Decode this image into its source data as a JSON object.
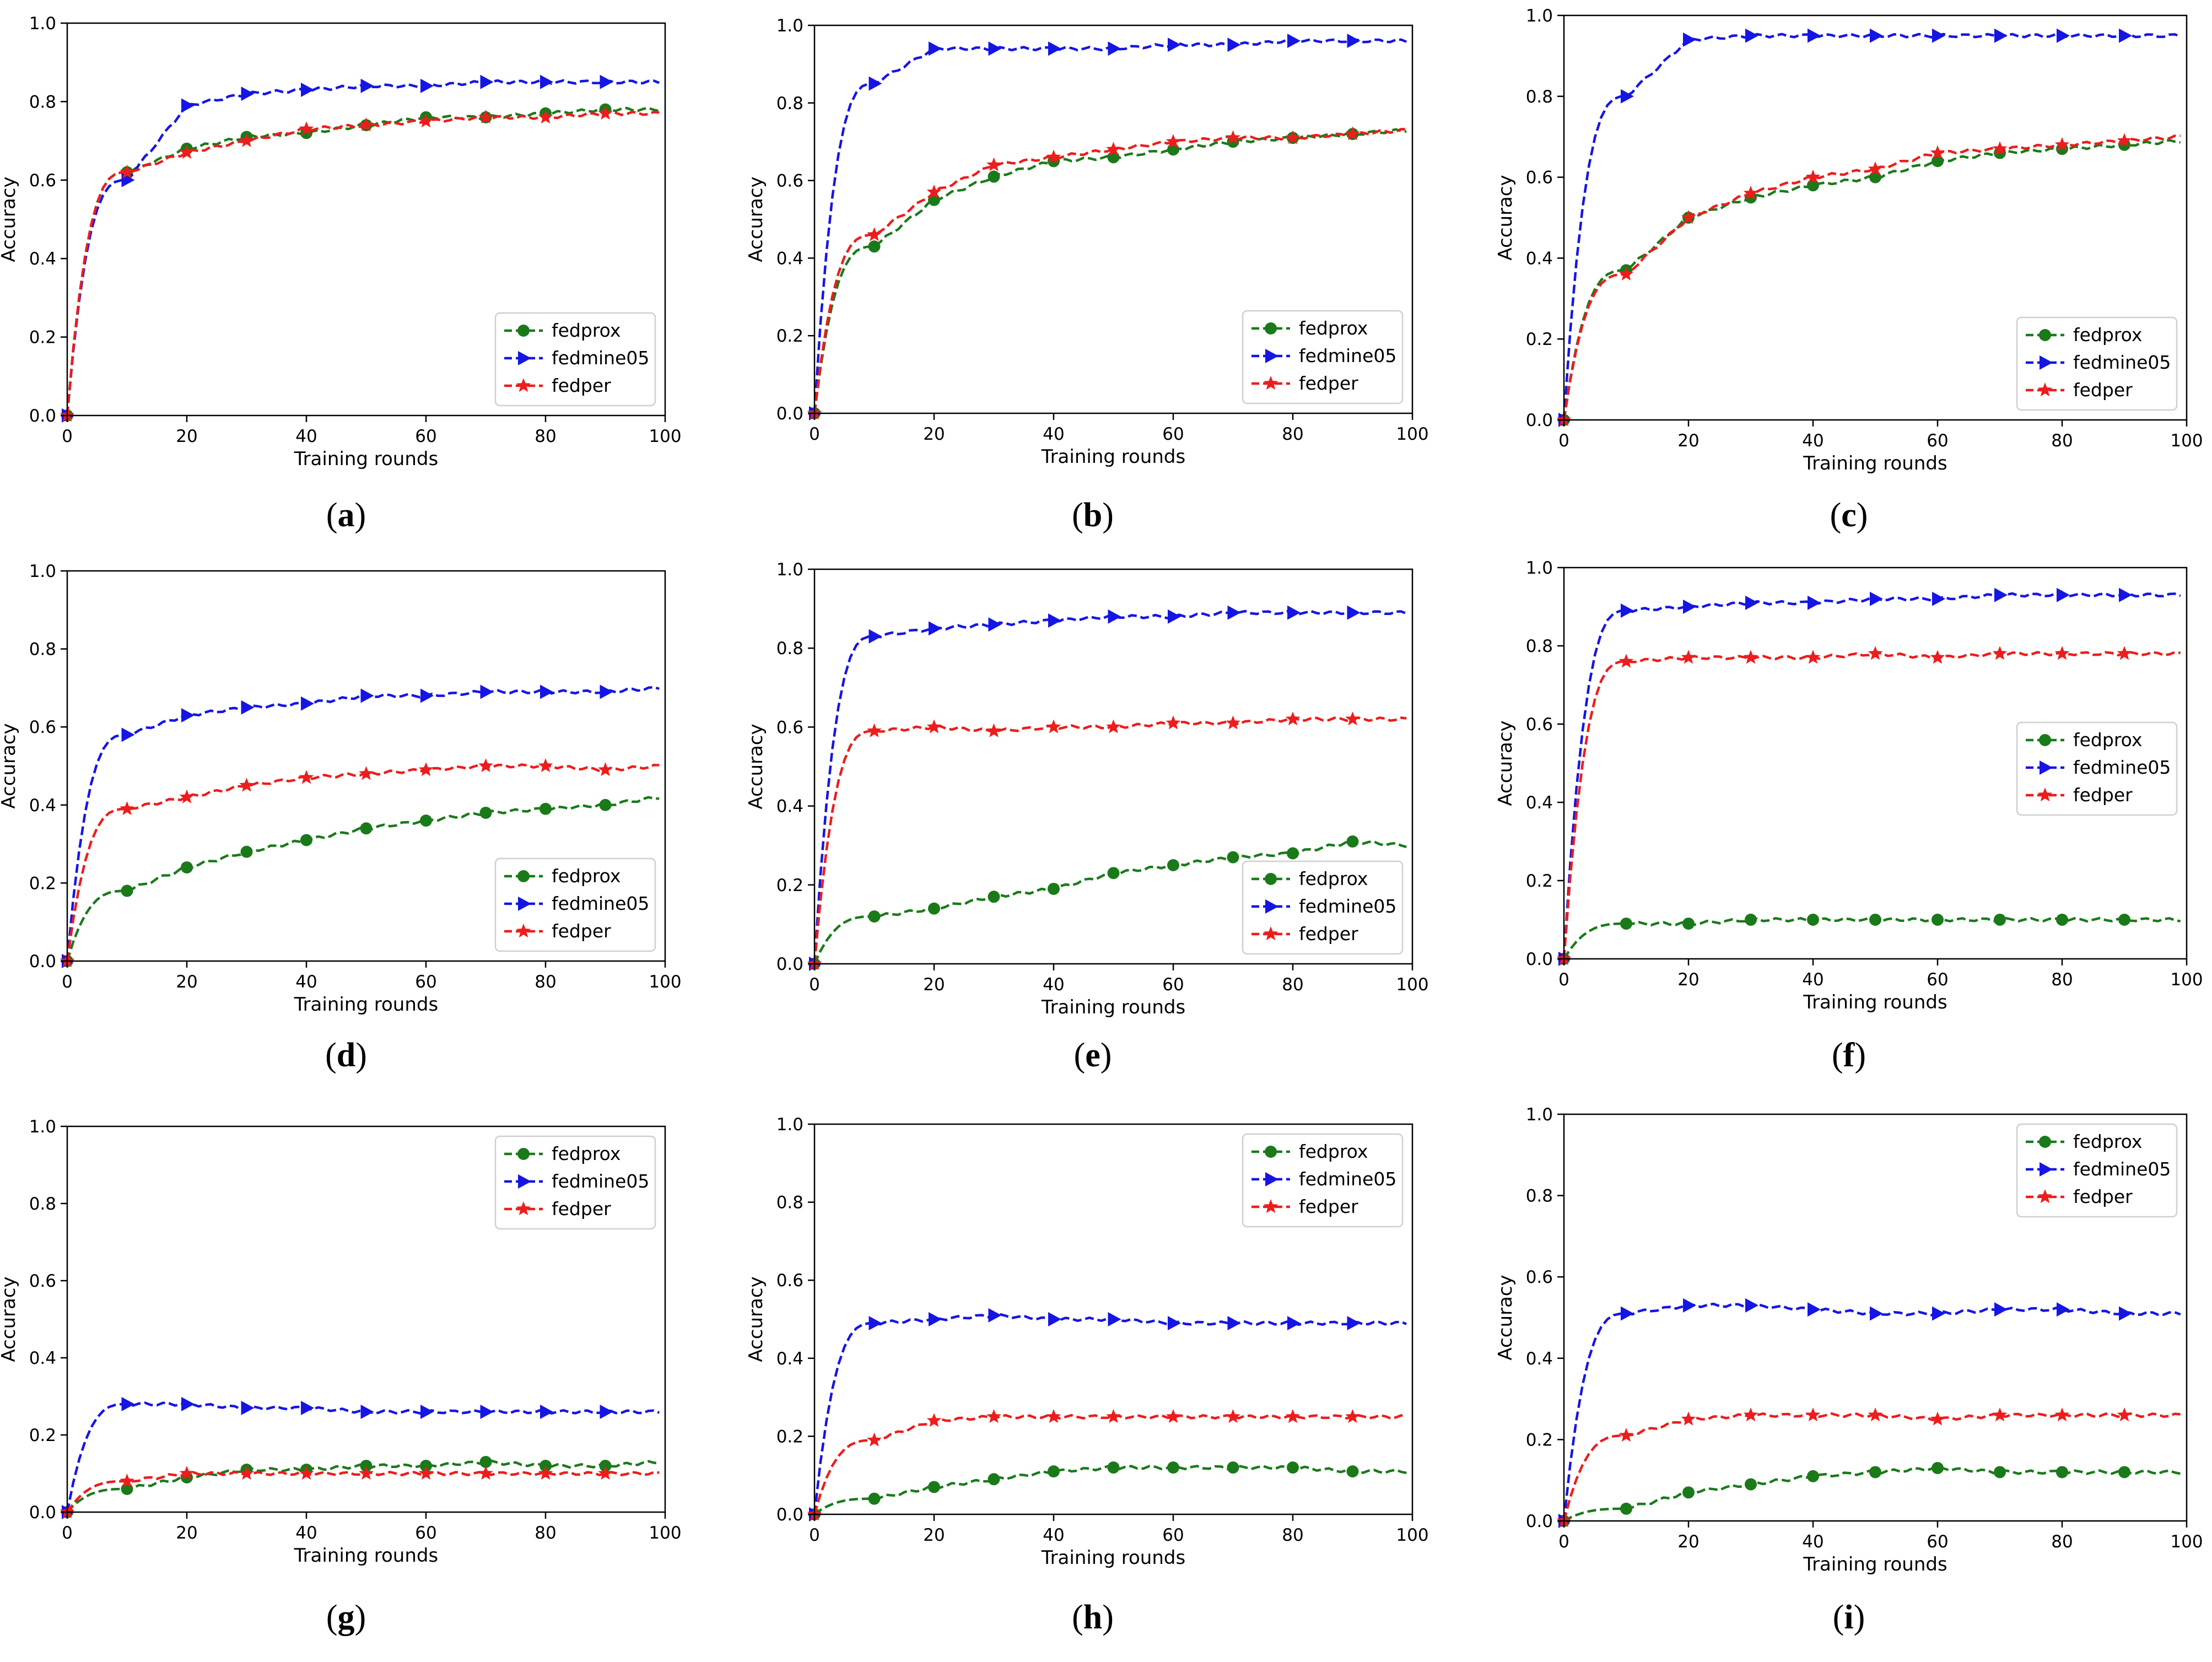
{
  "figure": {
    "legend_entries": [
      "fedprox",
      "fedmine05",
      "fedper"
    ],
    "x_label": "Training rounds",
    "y_label": "Accuracy",
    "colors": {
      "fedprox": "#1a7a1a",
      "fedmine05": "#1515e6",
      "fedper": "#ee1c1c"
    }
  },
  "chart_data": [
    {
      "type": "line",
      "panel": "a",
      "legend_position": "lower-right",
      "x": [
        0,
        10,
        20,
        30,
        40,
        50,
        60,
        70,
        80,
        90,
        99
      ],
      "xlabel": "Training rounds",
      "ylabel": "Accuracy",
      "xlim": [
        0,
        100
      ],
      "ylim": [
        0,
        1.0
      ],
      "xticks": [
        0,
        20,
        40,
        60,
        80,
        100
      ],
      "yticks": [
        0.0,
        0.2,
        0.4,
        0.6,
        0.8,
        1.0
      ],
      "series": [
        {
          "name": "fedprox",
          "values": [
            0.0,
            0.62,
            0.68,
            0.71,
            0.72,
            0.74,
            0.76,
            0.76,
            0.77,
            0.78,
            0.78
          ]
        },
        {
          "name": "fedmine05",
          "values": [
            0.0,
            0.6,
            0.79,
            0.82,
            0.83,
            0.84,
            0.84,
            0.85,
            0.85,
            0.85,
            0.85
          ]
        },
        {
          "name": "fedper",
          "values": [
            0.0,
            0.62,
            0.67,
            0.7,
            0.73,
            0.74,
            0.75,
            0.76,
            0.76,
            0.77,
            0.77
          ]
        }
      ]
    },
    {
      "type": "line",
      "panel": "b",
      "legend_position": "lower-right",
      "x": [
        0,
        10,
        20,
        30,
        40,
        50,
        60,
        70,
        80,
        90,
        99
      ],
      "xlabel": "Training rounds",
      "ylabel": "Accuracy",
      "xlim": [
        0,
        100
      ],
      "ylim": [
        0,
        1.0
      ],
      "xticks": [
        0,
        20,
        40,
        60,
        80,
        100
      ],
      "yticks": [
        0.0,
        0.2,
        0.4,
        0.6,
        0.8,
        1.0
      ],
      "series": [
        {
          "name": "fedprox",
          "values": [
            0.0,
            0.43,
            0.55,
            0.61,
            0.65,
            0.66,
            0.68,
            0.7,
            0.71,
            0.72,
            0.73
          ]
        },
        {
          "name": "fedmine05",
          "values": [
            0.0,
            0.85,
            0.94,
            0.94,
            0.94,
            0.94,
            0.95,
            0.95,
            0.96,
            0.96,
            0.96
          ]
        },
        {
          "name": "fedper",
          "values": [
            0.0,
            0.46,
            0.57,
            0.64,
            0.66,
            0.68,
            0.7,
            0.71,
            0.71,
            0.72,
            0.73
          ]
        }
      ]
    },
    {
      "type": "line",
      "panel": "c",
      "legend_position": "lower-right",
      "x": [
        0,
        10,
        20,
        30,
        40,
        50,
        60,
        70,
        80,
        90,
        99
      ],
      "xlabel": "Training rounds",
      "ylabel": "Accuracy",
      "xlim": [
        0,
        100
      ],
      "ylim": [
        0,
        1.0
      ],
      "xticks": [
        0,
        20,
        40,
        60,
        80,
        100
      ],
      "yticks": [
        0.0,
        0.2,
        0.4,
        0.6,
        0.8,
        1.0
      ],
      "series": [
        {
          "name": "fedprox",
          "values": [
            0.0,
            0.37,
            0.5,
            0.55,
            0.58,
            0.6,
            0.64,
            0.66,
            0.67,
            0.68,
            0.69
          ]
        },
        {
          "name": "fedmine05",
          "values": [
            0.0,
            0.8,
            0.94,
            0.95,
            0.95,
            0.95,
            0.95,
            0.95,
            0.95,
            0.95,
            0.95
          ]
        },
        {
          "name": "fedper",
          "values": [
            0.0,
            0.36,
            0.5,
            0.56,
            0.6,
            0.62,
            0.66,
            0.67,
            0.68,
            0.69,
            0.7
          ]
        }
      ]
    },
    {
      "type": "line",
      "panel": "d",
      "legend_position": "lower-right",
      "x": [
        0,
        10,
        20,
        30,
        40,
        50,
        60,
        70,
        80,
        90,
        99
      ],
      "xlabel": "Training rounds",
      "ylabel": "Accuracy",
      "xlim": [
        0,
        100
      ],
      "ylim": [
        0,
        1.0
      ],
      "xticks": [
        0,
        20,
        40,
        60,
        80,
        100
      ],
      "yticks": [
        0.0,
        0.2,
        0.4,
        0.6,
        0.8,
        1.0
      ],
      "series": [
        {
          "name": "fedprox",
          "values": [
            0.0,
            0.18,
            0.24,
            0.28,
            0.31,
            0.34,
            0.36,
            0.38,
            0.39,
            0.4,
            0.42
          ]
        },
        {
          "name": "fedmine05",
          "values": [
            0.0,
            0.58,
            0.63,
            0.65,
            0.66,
            0.68,
            0.68,
            0.69,
            0.69,
            0.69,
            0.7
          ]
        },
        {
          "name": "fedper",
          "values": [
            0.0,
            0.39,
            0.42,
            0.45,
            0.47,
            0.48,
            0.49,
            0.5,
            0.5,
            0.49,
            0.5
          ]
        }
      ]
    },
    {
      "type": "line",
      "panel": "e",
      "legend_position": "lower-right",
      "x": [
        0,
        10,
        20,
        30,
        40,
        50,
        60,
        70,
        80,
        90,
        99
      ],
      "xlabel": "Training rounds",
      "ylabel": "Accuracy",
      "xlim": [
        0,
        100
      ],
      "ylim": [
        0,
        1.0
      ],
      "xticks": [
        0,
        20,
        40,
        60,
        80,
        100
      ],
      "yticks": [
        0.0,
        0.2,
        0.4,
        0.6,
        0.8,
        1.0
      ],
      "series": [
        {
          "name": "fedprox",
          "values": [
            0.0,
            0.12,
            0.14,
            0.17,
            0.19,
            0.23,
            0.25,
            0.27,
            0.28,
            0.31,
            0.3
          ]
        },
        {
          "name": "fedmine05",
          "values": [
            0.0,
            0.83,
            0.85,
            0.86,
            0.87,
            0.88,
            0.88,
            0.89,
            0.89,
            0.89,
            0.89
          ]
        },
        {
          "name": "fedper",
          "values": [
            0.0,
            0.59,
            0.6,
            0.59,
            0.6,
            0.6,
            0.61,
            0.61,
            0.62,
            0.62,
            0.62
          ]
        }
      ]
    },
    {
      "type": "line",
      "panel": "f",
      "legend_position": "center-right",
      "x": [
        0,
        10,
        20,
        30,
        40,
        50,
        60,
        70,
        80,
        90,
        99
      ],
      "xlabel": "Training rounds",
      "ylabel": "Accuracy",
      "xlim": [
        0,
        100
      ],
      "ylim": [
        0,
        1.0
      ],
      "xticks": [
        0,
        20,
        40,
        60,
        80,
        100
      ],
      "yticks": [
        0.0,
        0.2,
        0.4,
        0.6,
        0.8,
        1.0
      ],
      "series": [
        {
          "name": "fedprox",
          "values": [
            0.0,
            0.09,
            0.09,
            0.1,
            0.1,
            0.1,
            0.1,
            0.1,
            0.1,
            0.1,
            0.1
          ]
        },
        {
          "name": "fedmine05",
          "values": [
            0.0,
            0.89,
            0.9,
            0.91,
            0.91,
            0.92,
            0.92,
            0.93,
            0.93,
            0.93,
            0.93
          ]
        },
        {
          "name": "fedper",
          "values": [
            0.0,
            0.76,
            0.77,
            0.77,
            0.77,
            0.78,
            0.77,
            0.78,
            0.78,
            0.78,
            0.78
          ]
        }
      ]
    },
    {
      "type": "line",
      "panel": "g",
      "legend_position": "top-right",
      "x": [
        0,
        10,
        20,
        30,
        40,
        50,
        60,
        70,
        80,
        90,
        99
      ],
      "xlabel": "Training rounds",
      "ylabel": "Accuracy",
      "xlim": [
        0,
        100
      ],
      "ylim": [
        0,
        1.0
      ],
      "xticks": [
        0,
        20,
        40,
        60,
        80,
        100
      ],
      "yticks": [
        0.0,
        0.2,
        0.4,
        0.6,
        0.8,
        1.0
      ],
      "series": [
        {
          "name": "fedprox",
          "values": [
            0.0,
            0.06,
            0.09,
            0.11,
            0.11,
            0.12,
            0.12,
            0.13,
            0.12,
            0.12,
            0.13
          ]
        },
        {
          "name": "fedmine05",
          "values": [
            0.0,
            0.28,
            0.28,
            0.27,
            0.27,
            0.26,
            0.26,
            0.26,
            0.26,
            0.26,
            0.26
          ]
        },
        {
          "name": "fedper",
          "values": [
            0.0,
            0.08,
            0.1,
            0.1,
            0.1,
            0.1,
            0.1,
            0.1,
            0.1,
            0.1,
            0.1
          ]
        }
      ]
    },
    {
      "type": "line",
      "panel": "h",
      "legend_position": "top-right",
      "x": [
        0,
        10,
        20,
        30,
        40,
        50,
        60,
        70,
        80,
        90,
        99
      ],
      "xlabel": "Training rounds",
      "ylabel": "Accuracy",
      "xlim": [
        0,
        100
      ],
      "ylim": [
        0,
        1.0
      ],
      "xticks": [
        0,
        20,
        40,
        60,
        80,
        100
      ],
      "yticks": [
        0.0,
        0.2,
        0.4,
        0.6,
        0.8,
        1.0
      ],
      "series": [
        {
          "name": "fedprox",
          "values": [
            0.0,
            0.04,
            0.07,
            0.09,
            0.11,
            0.12,
            0.12,
            0.12,
            0.12,
            0.11,
            0.11
          ]
        },
        {
          "name": "fedmine05",
          "values": [
            0.0,
            0.49,
            0.5,
            0.51,
            0.5,
            0.5,
            0.49,
            0.49,
            0.49,
            0.49,
            0.49
          ]
        },
        {
          "name": "fedper",
          "values": [
            0.0,
            0.19,
            0.24,
            0.25,
            0.25,
            0.25,
            0.25,
            0.25,
            0.25,
            0.25,
            0.25
          ]
        }
      ]
    },
    {
      "type": "line",
      "panel": "i",
      "legend_position": "top-right",
      "x": [
        0,
        10,
        20,
        30,
        40,
        50,
        60,
        70,
        80,
        90,
        99
      ],
      "xlabel": "Training rounds",
      "ylabel": "Accuracy",
      "xlim": [
        0,
        100
      ],
      "ylim": [
        0,
        1.0
      ],
      "xticks": [
        0,
        20,
        40,
        60,
        80,
        100
      ],
      "yticks": [
        0.0,
        0.2,
        0.4,
        0.6,
        0.8,
        1.0
      ],
      "series": [
        {
          "name": "fedprox",
          "values": [
            0.0,
            0.03,
            0.07,
            0.09,
            0.11,
            0.12,
            0.13,
            0.12,
            0.12,
            0.12,
            0.12
          ]
        },
        {
          "name": "fedmine05",
          "values": [
            0.0,
            0.51,
            0.53,
            0.53,
            0.52,
            0.51,
            0.51,
            0.52,
            0.52,
            0.51,
            0.51
          ]
        },
        {
          "name": "fedper",
          "values": [
            0.0,
            0.21,
            0.25,
            0.26,
            0.26,
            0.26,
            0.25,
            0.26,
            0.26,
            0.26,
            0.26
          ]
        }
      ]
    }
  ]
}
